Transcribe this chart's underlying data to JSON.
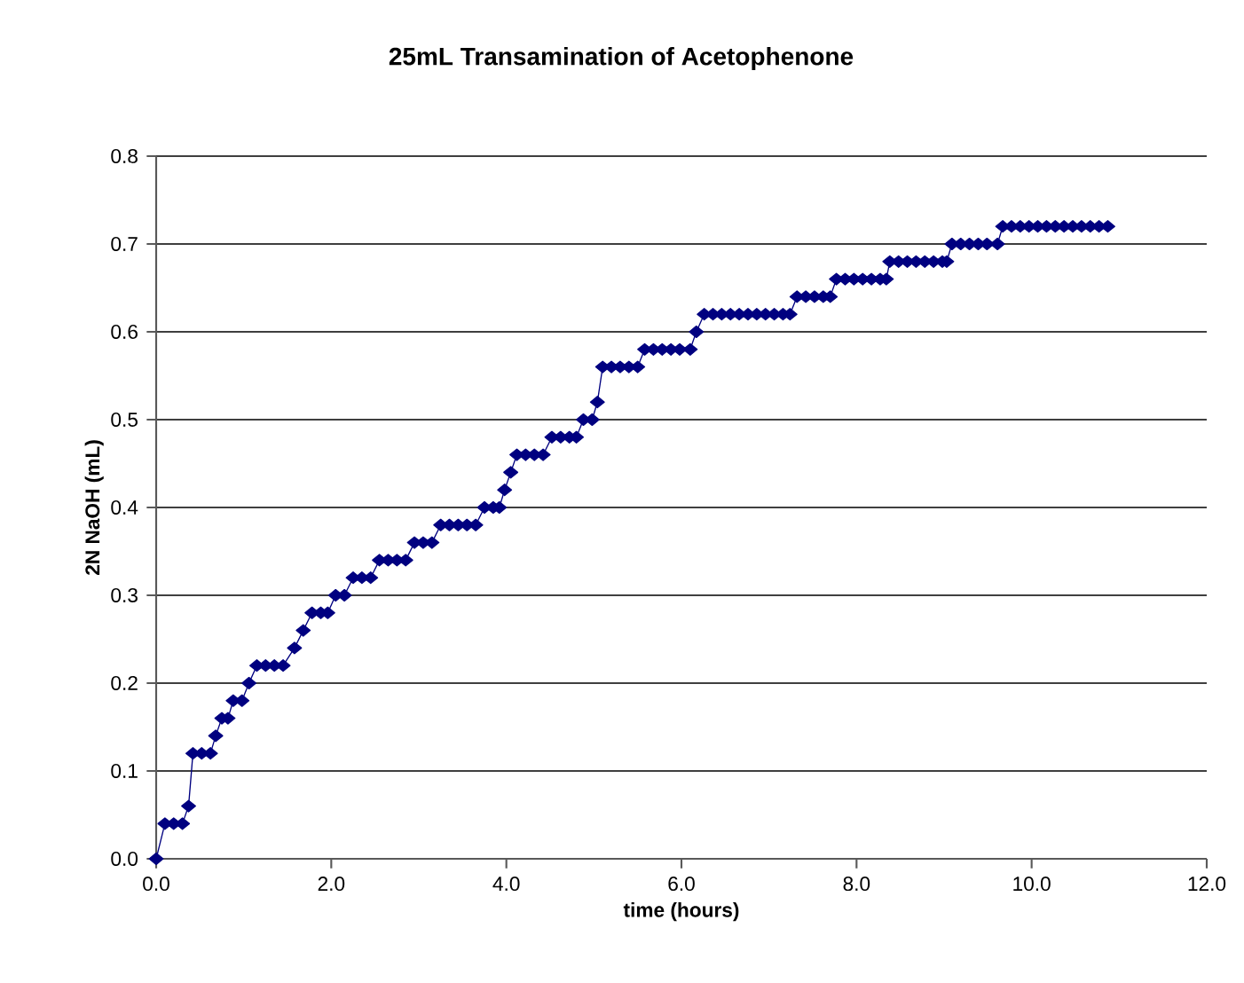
{
  "chart_data": {
    "type": "line",
    "title": "25mL Transamination of Acetophenone",
    "xlabel": "time (hours)",
    "ylabel": "2N NaOH (mL)",
    "x": [
      0,
      0.1,
      0.2,
      0.3,
      0.37,
      0.42,
      0.52,
      0.62,
      0.68,
      0.75,
      0.82,
      0.88,
      0.98,
      1.06,
      1.15,
      1.25,
      1.35,
      1.45,
      1.58,
      1.68,
      1.78,
      1.88,
      1.96,
      2.05,
      2.15,
      2.25,
      2.35,
      2.45,
      2.55,
      2.65,
      2.75,
      2.85,
      2.95,
      3.05,
      3.15,
      3.25,
      3.35,
      3.45,
      3.55,
      3.65,
      3.75,
      3.85,
      3.92,
      3.98,
      4.05,
      4.12,
      4.22,
      4.32,
      4.42,
      4.52,
      4.62,
      4.72,
      4.8,
      4.88,
      4.98,
      5.04,
      5.1,
      5.2,
      5.3,
      5.4,
      5.5,
      5.58,
      5.68,
      5.78,
      5.88,
      5.98,
      6.1,
      6.17,
      6.26,
      6.36,
      6.46,
      6.56,
      6.66,
      6.76,
      6.86,
      6.96,
      7.06,
      7.16,
      7.24,
      7.32,
      7.42,
      7.52,
      7.62,
      7.7,
      7.77,
      7.87,
      7.97,
      8.07,
      8.17,
      8.27,
      8.34,
      8.38,
      8.48,
      8.58,
      8.68,
      8.78,
      8.88,
      8.98,
      9.03,
      9.09,
      9.19,
      9.29,
      9.39,
      9.49,
      9.61,
      9.67,
      9.77,
      9.87,
      9.97,
      10.07,
      10.17,
      10.27,
      10.37,
      10.47,
      10.57,
      10.67,
      10.77,
      10.87
    ],
    "values": [
      0,
      0.04,
      0.04,
      0.04,
      0.06,
      0.12,
      0.12,
      0.12,
      0.14,
      0.16,
      0.16,
      0.18,
      0.18,
      0.2,
      0.22,
      0.22,
      0.22,
      0.22,
      0.24,
      0.26,
      0.28,
      0.28,
      0.28,
      0.3,
      0.3,
      0.32,
      0.32,
      0.32,
      0.34,
      0.34,
      0.34,
      0.34,
      0.36,
      0.36,
      0.36,
      0.38,
      0.38,
      0.38,
      0.38,
      0.38,
      0.4,
      0.4,
      0.4,
      0.42,
      0.44,
      0.46,
      0.46,
      0.46,
      0.46,
      0.48,
      0.48,
      0.48,
      0.48,
      0.5,
      0.5,
      0.52,
      0.56,
      0.56,
      0.56,
      0.56,
      0.56,
      0.58,
      0.58,
      0.58,
      0.58,
      0.58,
      0.58,
      0.6,
      0.62,
      0.62,
      0.62,
      0.62,
      0.62,
      0.62,
      0.62,
      0.62,
      0.62,
      0.62,
      0.62,
      0.64,
      0.64,
      0.64,
      0.64,
      0.64,
      0.66,
      0.66,
      0.66,
      0.66,
      0.66,
      0.66,
      0.66,
      0.68,
      0.68,
      0.68,
      0.68,
      0.68,
      0.68,
      0.68,
      0.68,
      0.7,
      0.7,
      0.7,
      0.7,
      0.7,
      0.7,
      0.72,
      0.72,
      0.72,
      0.72,
      0.72,
      0.72,
      0.72,
      0.72,
      0.72,
      0.72,
      0.72,
      0.72,
      0.72
    ],
    "color": "#000080",
    "marker": "diamond",
    "line_style": "solid",
    "grid": "y",
    "xlim": [
      0,
      12
    ],
    "ylim": [
      0,
      0.8
    ],
    "xticks": [
      {
        "value": 0,
        "label": "0.0"
      },
      {
        "value": 2,
        "label": "2.0"
      },
      {
        "value": 4,
        "label": "4.0"
      },
      {
        "value": 6,
        "label": "6.0"
      },
      {
        "value": 8,
        "label": "8.0"
      },
      {
        "value": 10,
        "label": "10.0"
      },
      {
        "value": 12,
        "label": "12.0"
      }
    ],
    "yticks": [
      {
        "value": 0,
        "label": "0.0"
      },
      {
        "value": 0.1,
        "label": "0.1"
      },
      {
        "value": 0.2,
        "label": "0.2"
      },
      {
        "value": 0.3,
        "label": "0.3"
      },
      {
        "value": 0.4,
        "label": "0.4"
      },
      {
        "value": 0.5,
        "label": "0.5"
      },
      {
        "value": 0.6,
        "label": "0.6"
      },
      {
        "value": 0.7,
        "label": "0.7"
      },
      {
        "value": 0.8,
        "label": "0.8"
      }
    ]
  }
}
